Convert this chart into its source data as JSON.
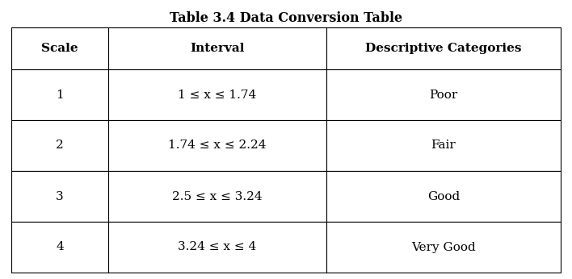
{
  "title": "Table 3.4 Data Conversion Table",
  "title_fontsize": 11.5,
  "title_fontweight": "bold",
  "col_headers": [
    "Scale",
    "Interval",
    "Descriptive Categories"
  ],
  "col_header_fontsize": 11,
  "col_header_fontweight": "bold",
  "rows": [
    [
      "1",
      "1 ≤ x ≤ 1.74",
      "Poor"
    ],
    [
      "2",
      "1.74 ≤ x ≤ 2.24",
      "Fair"
    ],
    [
      "3",
      "2.5 ≤ x ≤ 3.24",
      "Good"
    ],
    [
      "4",
      "3.24 ≤ x ≤ 4",
      "Very Good"
    ]
  ],
  "cell_fontsize": 11,
  "background_color": "#ffffff",
  "border_color": "#000000",
  "border_linewidth": 0.8,
  "fig_width": 7.08,
  "fig_height": 3.46,
  "dpi": 100
}
